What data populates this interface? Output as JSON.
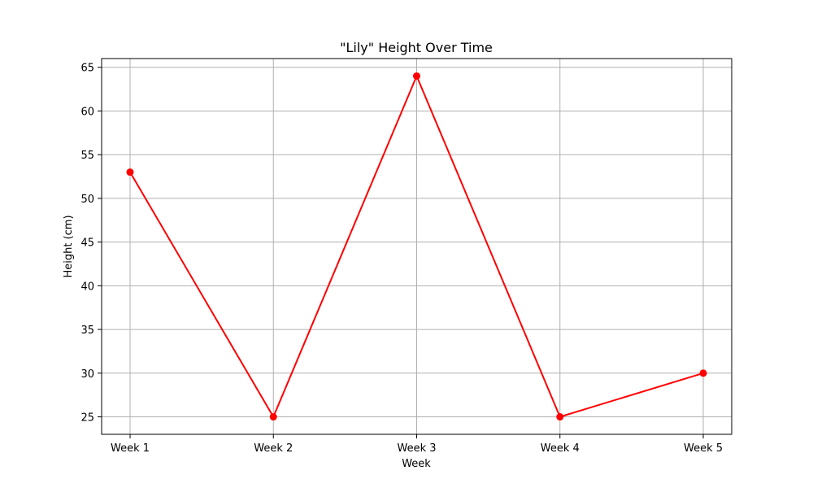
{
  "chart_data": {
    "type": "line",
    "title": "\"Lily\" Height Over Time",
    "xlabel": "Week",
    "ylabel": "Height (cm)",
    "categories": [
      "Week 1",
      "Week 2",
      "Week 3",
      "Week 4",
      "Week 5"
    ],
    "series": [
      {
        "values": [
          53,
          25,
          64,
          25,
          30
        ],
        "color": "#ff0000",
        "marker": "circle"
      }
    ],
    "ylim": [
      23,
      66
    ],
    "yticks": [
      25,
      30,
      35,
      40,
      45,
      50,
      55,
      60,
      65
    ],
    "grid": true,
    "grid_color": "#b0b0b0",
    "line_color": "#ff0000",
    "axis_color": "#000000"
  }
}
